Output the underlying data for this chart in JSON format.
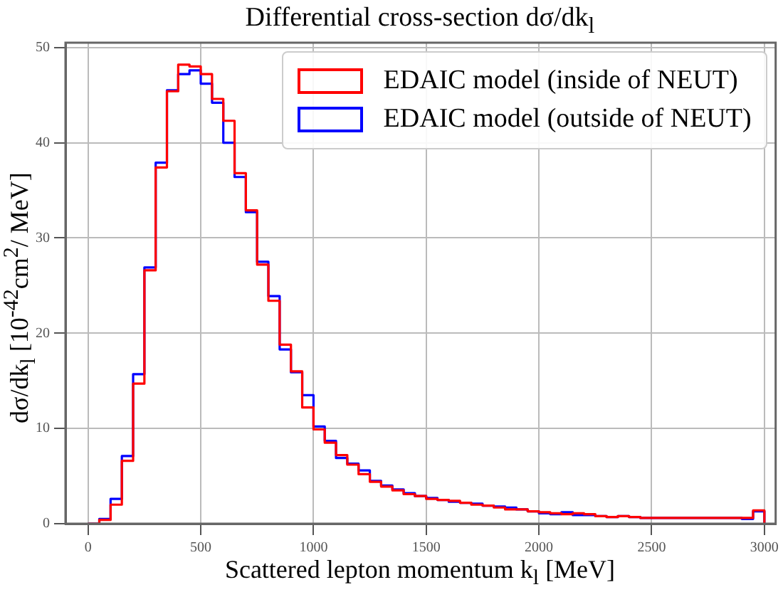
{
  "chart_data": {
    "type": "histogram",
    "title": "Differential cross-section dσ/dk$_{l}$",
    "xlabel": "Scattered lepton momentum k$_{l}$ [MeV]",
    "ylabel": "dσ/dk$_{l}$ [10$^{-42}$cm$^{2}$/ MeV]",
    "bins": [
      0,
      50,
      100,
      150,
      200,
      250,
      300,
      350,
      400,
      450,
      500,
      550,
      600,
      650,
      700,
      750,
      800,
      850,
      900,
      950,
      1000,
      1050,
      1100,
      1150,
      1200,
      1250,
      1300,
      1350,
      1400,
      1450,
      1500,
      1550,
      1600,
      1650,
      1700,
      1750,
      1800,
      1850,
      1900,
      1950,
      2000,
      2050,
      2100,
      2150,
      2200,
      2250,
      2300,
      2350,
      2400,
      2450,
      2500,
      2550,
      2600,
      2650,
      2700,
      2750,
      2800,
      2850,
      2900,
      2950,
      3000
    ],
    "series": [
      {
        "name": "EDAIC model (inside of NEUT)",
        "color": "#ff0000",
        "values": [
          0,
          0.4,
          2.0,
          6.6,
          14.7,
          26.6,
          37.4,
          45.4,
          48.2,
          48.0,
          47.2,
          44.6,
          42.3,
          36.8,
          32.9,
          27.2,
          23.4,
          18.8,
          16.0,
          12.2,
          9.9,
          8.5,
          7.2,
          6.2,
          5.2,
          4.4,
          3.9,
          3.5,
          3.1,
          2.9,
          2.6,
          2.5,
          2.4,
          2.2,
          2.0,
          1.9,
          1.7,
          1.5,
          1.5,
          1.3,
          1.2,
          1.1,
          1.0,
          1.1,
          1.0,
          0.8,
          0.7,
          0.8,
          0.7,
          0.6,
          0.6,
          0.6,
          0.6,
          0.6,
          0.6,
          0.6,
          0.6,
          0.6,
          0.6,
          1.4
        ]
      },
      {
        "name": "EDAIC model (outside of NEUT)",
        "color": "#0000ff",
        "values": [
          0,
          0.5,
          2.6,
          7.1,
          15.7,
          26.9,
          37.9,
          45.5,
          47.2,
          47.6,
          46.2,
          44.2,
          40.0,
          36.4,
          32.7,
          27.5,
          23.9,
          18.3,
          15.9,
          13.5,
          10.2,
          8.7,
          6.9,
          6.3,
          5.6,
          4.5,
          4.0,
          3.6,
          3.2,
          2.9,
          2.7,
          2.5,
          2.3,
          2.2,
          2.1,
          1.9,
          1.8,
          1.7,
          1.5,
          1.3,
          1.1,
          1.0,
          1.2,
          0.9,
          0.9,
          0.8,
          0.7,
          0.8,
          0.7,
          0.6,
          0.6,
          0.6,
          0.6,
          0.6,
          0.6,
          0.6,
          0.6,
          0.6,
          0.5,
          1.3
        ]
      }
    ],
    "xlim": [
      -100,
      3050
    ],
    "xticks": [
      0,
      500,
      1000,
      1500,
      2000,
      2500,
      3000
    ],
    "ylim": [
      0,
      50.5
    ],
    "yticks": [
      0,
      10,
      20,
      30,
      40,
      50
    ],
    "grid": true,
    "legend": "top right"
  }
}
